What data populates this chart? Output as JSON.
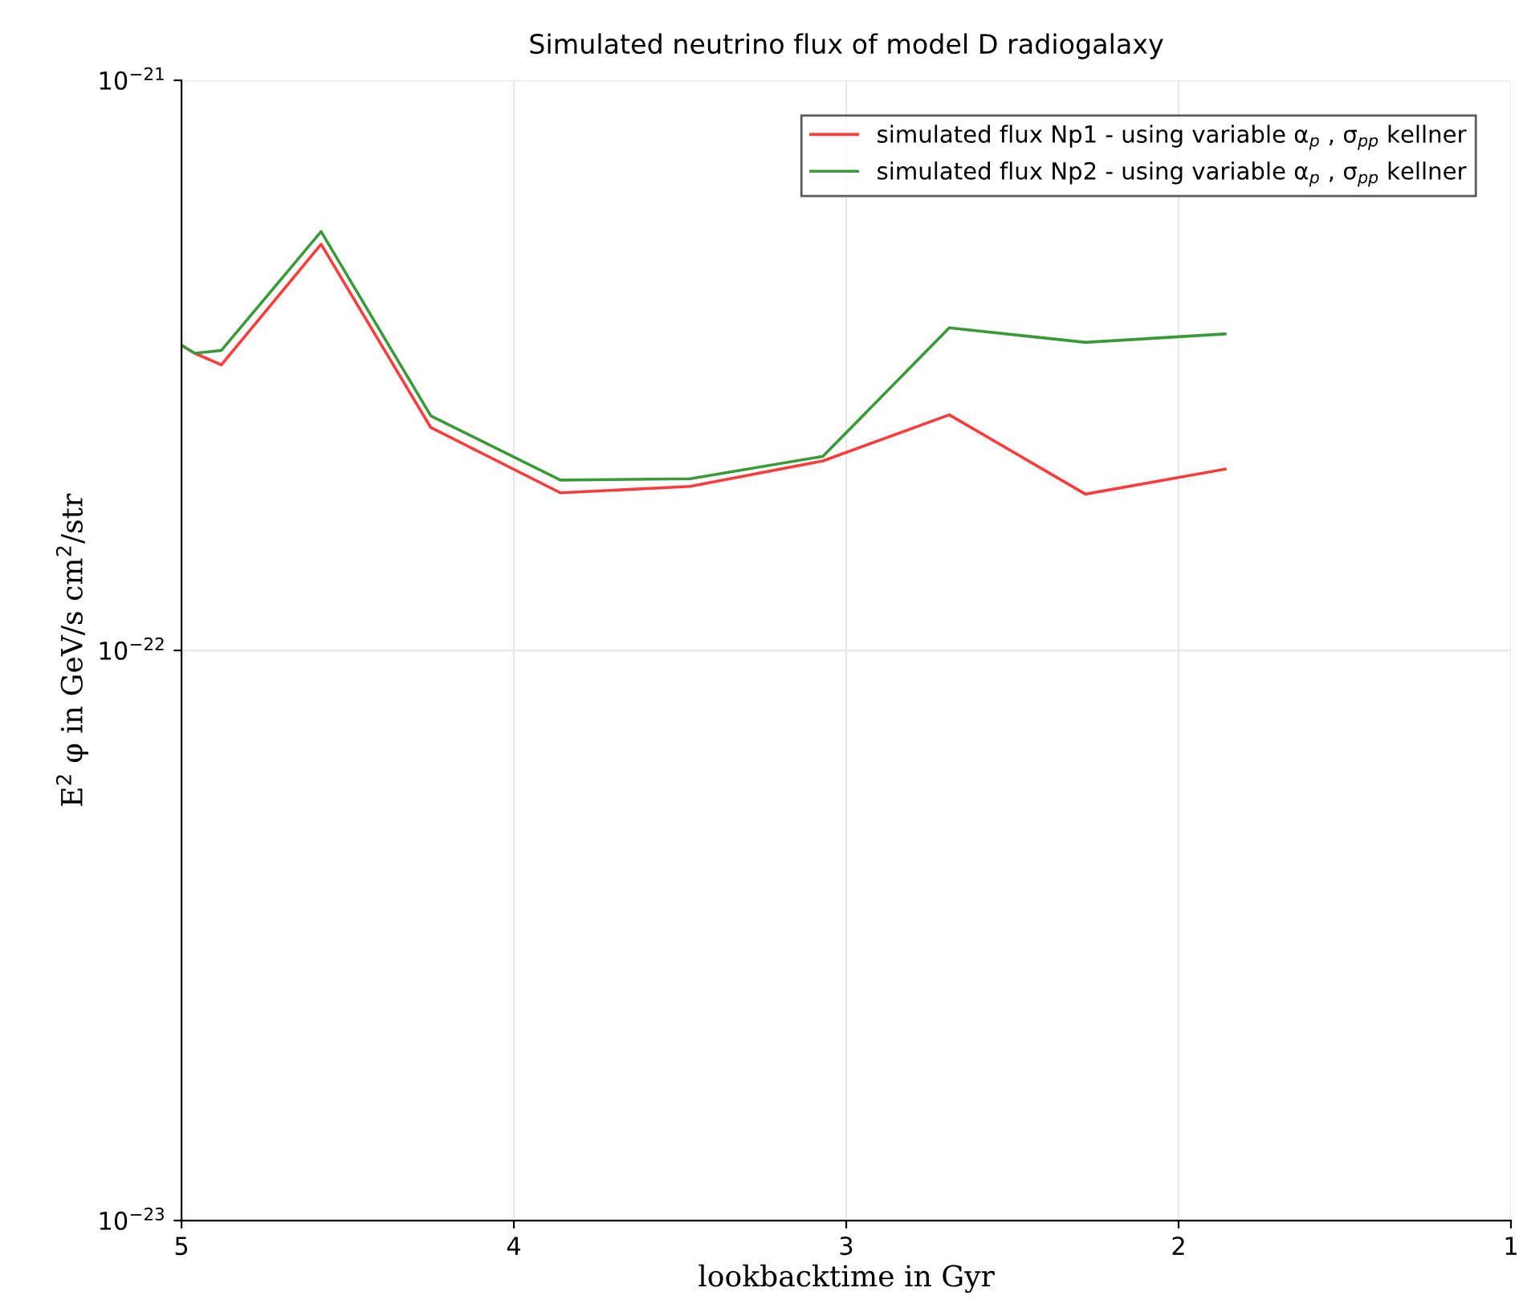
{
  "chart_data": {
    "type": "line",
    "title": "Simulated neutrino flux of model D radiogalaxy",
    "xlabel": "lookbacktime in Gyr",
    "ylabel": "E$^{2}$ φ in GeV/s cm$^{2}$/str",
    "x": [
      5.0,
      4.96,
      4.88,
      4.58,
      4.25,
      3.86,
      3.47,
      3.07,
      2.69,
      2.28,
      1.86
    ],
    "series": [
      {
        "name": "simulated flux Np1 - using variable α$_{p}$ , σ$_{pp}$ kellner",
        "color": "#ff3b3b",
        "values": [
          3.43e-22,
          3.32e-22,
          3.17e-22,
          5.16e-22,
          2.46e-22,
          1.89e-22,
          1.94e-22,
          2.15e-22,
          2.59e-22,
          1.88e-22,
          2.08e-22
        ]
      },
      {
        "name": "simulated flux Np2 - using variable α$_{p}$ , σ$_{pp}$ kellner",
        "color": "#3a9a3a",
        "values": [
          3.43e-22,
          3.32e-22,
          3.36e-22,
          5.43e-22,
          2.58e-22,
          1.99e-22,
          2e-22,
          2.19e-22,
          3.68e-22,
          3.47e-22,
          3.59e-22
        ]
      }
    ],
    "log": "y",
    "xlim": [
      5,
      1
    ],
    "xticks": [
      5,
      4,
      3,
      2,
      1
    ],
    "ylim": [
      1e-23,
      1e-21
    ],
    "yticks": [
      {
        "value": 1e-23,
        "label": "10$^{−23}$"
      },
      {
        "value": 1e-22,
        "label": "10$^{−22}$"
      },
      {
        "value": 1e-21,
        "label": "10$^{−21}$"
      }
    ],
    "grid": true,
    "legend": "top right",
    "line_style": "solid",
    "marker": "none"
  }
}
